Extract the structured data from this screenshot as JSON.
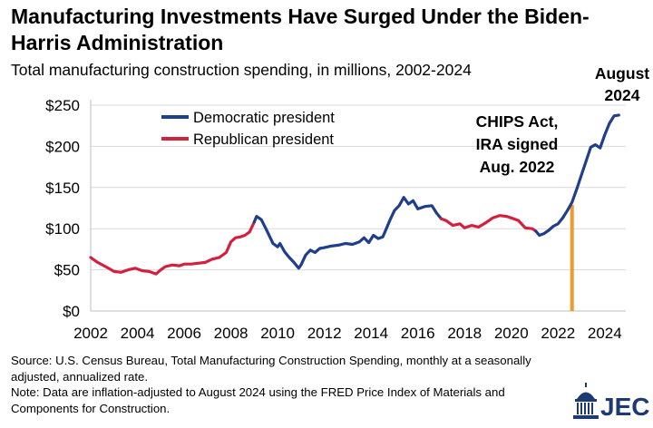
{
  "header": {
    "title": "Manufacturing Investments Have Surged Under the Biden-Harris Administration",
    "subtitle": "Total manufacturing construction spending, in millions, 2002-2024"
  },
  "footer": {
    "source": "Source: U.S. Census Bureau, Total Manufacturing Construction Spending, monthly at a seasonally adjusted, annualized rate.",
    "note": "Note: Data are inflation-adjusted to August 2024 using the FRED Price Index of Materials and Components for Construction."
  },
  "logo": {
    "text": "JEC",
    "icon": "capitol-dome-icon",
    "color": "#1c3a73"
  },
  "colors": {
    "democratic": "#1f3e8e",
    "republican": "#d4203f",
    "marker": "#ef9b2b",
    "grid": "#d9d9d9"
  },
  "chart_data": {
    "type": "line",
    "x_unit": "year",
    "xlim": [
      2002,
      2024.9
    ],
    "ylim": [
      0,
      250
    ],
    "x_ticks": [
      "2002",
      "2004",
      "2006",
      "2008",
      "2010",
      "2012",
      "2014",
      "2016",
      "2018",
      "2020",
      "2022",
      "2024"
    ],
    "y_ticks": [
      "$0",
      "$50",
      "$100",
      "$150",
      "$200",
      "$250"
    ],
    "grid": "horizontal",
    "legend_position": "top-left",
    "legend": [
      {
        "label": "Democratic president",
        "color": "#1f3e8e"
      },
      {
        "label": "Republican president",
        "color": "#d4203f"
      }
    ],
    "annotations": [
      {
        "text": "CHIPS Act, IRA signed Aug. 2022",
        "x": 2022.6
      },
      {
        "text": "August 2024",
        "x": 2024.6
      }
    ],
    "series": [
      {
        "name": "Republican president",
        "color": "#d4203f",
        "points": [
          [
            2002.0,
            65
          ],
          [
            2002.3,
            59
          ],
          [
            2002.7,
            53
          ],
          [
            2003.0,
            48
          ],
          [
            2003.3,
            47
          ],
          [
            2003.6,
            50
          ],
          [
            2003.9,
            52
          ],
          [
            2004.2,
            49
          ],
          [
            2004.5,
            48
          ],
          [
            2004.8,
            45
          ],
          [
            2005.0,
            50
          ],
          [
            2005.2,
            54
          ],
          [
            2005.5,
            56
          ],
          [
            2005.8,
            55
          ],
          [
            2006.0,
            57
          ],
          [
            2006.3,
            57
          ],
          [
            2006.6,
            58
          ],
          [
            2006.9,
            59
          ],
          [
            2007.2,
            63
          ],
          [
            2007.5,
            65
          ],
          [
            2007.8,
            71
          ],
          [
            2008.0,
            84
          ],
          [
            2008.2,
            89
          ],
          [
            2008.4,
            90
          ],
          [
            2008.6,
            92
          ],
          [
            2008.8,
            96
          ],
          [
            2009.0,
            108
          ]
        ]
      },
      {
        "name": "Democratic president",
        "color": "#1f3e8e",
        "points": [
          [
            2009.0,
            108
          ],
          [
            2009.1,
            115
          ],
          [
            2009.3,
            111
          ],
          [
            2009.5,
            100
          ],
          [
            2009.7,
            88
          ],
          [
            2009.8,
            82
          ],
          [
            2010.0,
            78
          ],
          [
            2010.1,
            82
          ],
          [
            2010.3,
            72
          ],
          [
            2010.5,
            65
          ],
          [
            2010.7,
            59
          ],
          [
            2010.9,
            52
          ],
          [
            2011.0,
            56
          ],
          [
            2011.2,
            68
          ],
          [
            2011.4,
            74
          ],
          [
            2011.6,
            71
          ],
          [
            2011.8,
            76
          ],
          [
            2012.0,
            77
          ],
          [
            2012.3,
            79
          ],
          [
            2012.6,
            80
          ],
          [
            2012.9,
            82
          ],
          [
            2013.2,
            81
          ],
          [
            2013.5,
            84
          ],
          [
            2013.7,
            89
          ],
          [
            2013.9,
            83
          ],
          [
            2014.1,
            92
          ],
          [
            2014.3,
            88
          ],
          [
            2014.5,
            90
          ],
          [
            2014.8,
            110
          ],
          [
            2015.0,
            122
          ],
          [
            2015.2,
            128
          ],
          [
            2015.4,
            138
          ],
          [
            2015.6,
            130
          ],
          [
            2015.8,
            134
          ],
          [
            2016.0,
            124
          ],
          [
            2016.3,
            127
          ],
          [
            2016.6,
            128
          ],
          [
            2016.8,
            119
          ],
          [
            2017.0,
            112
          ]
        ]
      },
      {
        "name": "Republican president",
        "color": "#d4203f",
        "points": [
          [
            2017.0,
            112
          ],
          [
            2017.2,
            110
          ],
          [
            2017.5,
            104
          ],
          [
            2017.8,
            106
          ],
          [
            2018.0,
            101
          ],
          [
            2018.3,
            104
          ],
          [
            2018.6,
            102
          ],
          [
            2018.9,
            107
          ],
          [
            2019.2,
            113
          ],
          [
            2019.5,
            116
          ],
          [
            2019.8,
            115
          ],
          [
            2020.0,
            113
          ],
          [
            2020.3,
            110
          ],
          [
            2020.6,
            101
          ],
          [
            2020.9,
            100
          ],
          [
            2021.05,
            97
          ]
        ]
      },
      {
        "name": "Democratic president",
        "color": "#1f3e8e",
        "points": [
          [
            2021.05,
            97
          ],
          [
            2021.2,
            92
          ],
          [
            2021.4,
            94
          ],
          [
            2021.6,
            98
          ],
          [
            2021.8,
            103
          ],
          [
            2022.0,
            106
          ],
          [
            2022.2,
            113
          ],
          [
            2022.4,
            122
          ],
          [
            2022.6,
            132
          ],
          [
            2022.8,
            148
          ],
          [
            2023.0,
            165
          ],
          [
            2023.2,
            182
          ],
          [
            2023.4,
            199
          ],
          [
            2023.6,
            202
          ],
          [
            2023.8,
            198
          ],
          [
            2024.0,
            214
          ],
          [
            2024.2,
            228
          ],
          [
            2024.4,
            237
          ],
          [
            2024.6,
            238
          ]
        ]
      }
    ]
  }
}
